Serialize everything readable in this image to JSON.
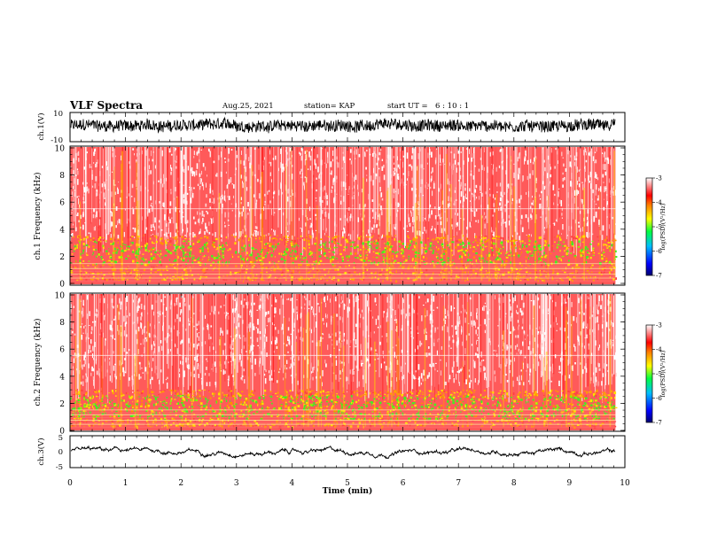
{
  "header": {
    "title": "VLF Spectra",
    "date": "Aug.25, 2021",
    "station": "station= KAP",
    "start_label": "start  UT =",
    "start_time": "6 : 10 : 1"
  },
  "chart_data": [
    {
      "type": "line",
      "panel": "ch1-waveform",
      "ylabel": "ch.1(V)",
      "ylim": [
        -10,
        10
      ],
      "yticks": [
        "10",
        "-10"
      ],
      "xlim": [
        0,
        10
      ],
      "data_end": 9.83,
      "trace_level": 1,
      "trace_amplitude": 4,
      "color": "#000000"
    },
    {
      "type": "heatmap",
      "panel": "ch1-spectrogram",
      "ylabel": "ch.1 Frequency (kHz)",
      "ylim": [
        0,
        10
      ],
      "yticks": [
        "0",
        "2",
        "4",
        "6",
        "8",
        "10"
      ],
      "xlim": [
        0,
        10
      ],
      "data_end": 9.83,
      "green_band_khz": [
        1.5,
        3.2
      ],
      "colorbar": {
        "label": "log(PSD)(V²/Hz)",
        "ticks": [
          "-3",
          "-4",
          "-5",
          "-6",
          "-7"
        ],
        "range": [
          -7,
          -3
        ]
      }
    },
    {
      "type": "heatmap",
      "panel": "ch2-spectrogram",
      "ylabel": "ch.2 Frequency (kHz)",
      "ylim": [
        0,
        10
      ],
      "yticks": [
        "0",
        "2",
        "4",
        "6",
        "8",
        "10"
      ],
      "xlim": [
        0,
        10
      ],
      "data_end": 9.83,
      "green_band_khz": [
        0.9,
        2.6
      ],
      "colorbar": {
        "label": "log(PSD)(V²/Hz)",
        "ticks": [
          "-3",
          "-4",
          "-5",
          "-6",
          "-7"
        ],
        "range": [
          -7,
          -3
        ]
      }
    },
    {
      "type": "line",
      "panel": "ch3-waveform",
      "ylabel": "ch.3(V)",
      "ylim": [
        -5,
        5
      ],
      "yticks": [
        "5",
        "0",
        "-5"
      ],
      "xlim": [
        0,
        10
      ],
      "data_end": 9.83,
      "trace_level": 0,
      "trace_amplitude": 0.4,
      "color": "#000000"
    }
  ],
  "xaxis": {
    "label": "Time (min)",
    "ticks": [
      "0",
      "1",
      "2",
      "3",
      "4",
      "5",
      "6",
      "7",
      "8",
      "9",
      "10"
    ]
  }
}
